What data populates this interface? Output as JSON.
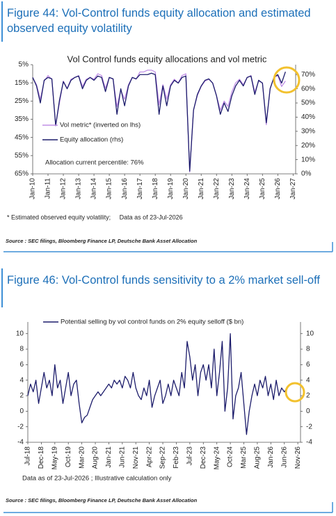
{
  "chart_data": [
    {
      "type": "line",
      "title": "Figure 44: Vol-Control funds equity allocation and estimated observed equity volatility",
      "subtitle": "Vol Control funds equity allocations and vol metric",
      "x": [
        "2010-01",
        "2010-04",
        "2010-07",
        "2010-10",
        "2011-01",
        "2011-04",
        "2011-07",
        "2011-10",
        "2012-01",
        "2012-04",
        "2012-07",
        "2012-10",
        "2013-01",
        "2013-04",
        "2013-07",
        "2013-10",
        "2014-01",
        "2014-04",
        "2014-07",
        "2014-10",
        "2015-01",
        "2015-04",
        "2015-07",
        "2015-10",
        "2016-01",
        "2016-04",
        "2016-07",
        "2016-10",
        "2017-01",
        "2017-04",
        "2017-07",
        "2017-10",
        "2018-01",
        "2018-04",
        "2018-07",
        "2018-10",
        "2019-01",
        "2019-04",
        "2019-07",
        "2019-10",
        "2020-01",
        "2020-04",
        "2020-07",
        "2020-10",
        "2021-01",
        "2021-04",
        "2021-07",
        "2021-10",
        "2022-01",
        "2022-04",
        "2022-07",
        "2022-10",
        "2023-01",
        "2023-04",
        "2023-07",
        "2023-10",
        "2024-01",
        "2024-04",
        "2024-07",
        "2024-10",
        "2025-01",
        "2025-04",
        "2025-07",
        "2025-10",
        "2026-01",
        "2026-04",
        "2026-07"
      ],
      "series": [
        {
          "name": "Vol metric* (inverted on lhs)",
          "color": "#c08fe6",
          "values": [
            12,
            16,
            24,
            14,
            11,
            13,
            38,
            26,
            14,
            18,
            13,
            12,
            11,
            17,
            13,
            12,
            13,
            10,
            11,
            18,
            12,
            13,
            28,
            19,
            24,
            16,
            12,
            13,
            9,
            9,
            8,
            8,
            9,
            27,
            16,
            24,
            16,
            13,
            15,
            11,
            10,
            64,
            30,
            22,
            17,
            14,
            13,
            15,
            22,
            30,
            25,
            28,
            20,
            15,
            13,
            16,
            12,
            11,
            20,
            14,
            15,
            38,
            18,
            12,
            11,
            17,
            14
          ]
        },
        {
          "name": "Equity allocation (rhs)",
          "color": "#1c1c6b",
          "axis": "y2",
          "values": [
            68,
            62,
            50,
            66,
            68,
            67,
            34,
            52,
            65,
            60,
            66,
            68,
            69,
            60,
            66,
            68,
            66,
            69,
            68,
            58,
            68,
            67,
            42,
            60,
            48,
            62,
            68,
            67,
            70,
            70,
            70,
            71,
            70,
            42,
            62,
            48,
            62,
            66,
            64,
            68,
            69,
            2,
            45,
            56,
            62,
            66,
            67,
            64,
            55,
            42,
            50,
            44,
            55,
            62,
            66,
            62,
            68,
            69,
            56,
            66,
            64,
            36,
            60,
            68,
            70,
            64,
            72
          ]
        }
      ],
      "ylim": [
        65,
        5
      ],
      "yticks": [
        {
          "value": 5,
          "label": "5%"
        },
        {
          "value": 15,
          "label": "15%"
        },
        {
          "value": 25,
          "label": "25%"
        },
        {
          "value": 35,
          "label": "35%"
        },
        {
          "value": 45,
          "label": "45%"
        },
        {
          "value": 55,
          "label": "55%"
        },
        {
          "value": 65,
          "label": "65%"
        }
      ],
      "y2lim": [
        0,
        77
      ],
      "y2ticks": [
        {
          "value": 0,
          "label": "0%"
        },
        {
          "value": 10,
          "label": "10%"
        },
        {
          "value": 20,
          "label": "20%"
        },
        {
          "value": 30,
          "label": "30%"
        },
        {
          "value": 40,
          "label": "40%"
        },
        {
          "value": 50,
          "label": "50%"
        },
        {
          "value": 60,
          "label": "60%"
        },
        {
          "value": 70,
          "label": "70%"
        }
      ],
      "xlim": [
        "2010-01",
        "2027-03"
      ],
      "xticks": [
        {
          "value": "2010-01",
          "label": "Jan-10"
        },
        {
          "value": "2011-01",
          "label": "Jan-11"
        },
        {
          "value": "2012-01",
          "label": "Jan-12"
        },
        {
          "value": "2013-01",
          "label": "Jan-13"
        },
        {
          "value": "2014-01",
          "label": "Jan-14"
        },
        {
          "value": "2015-01",
          "label": "Jan-15"
        },
        {
          "value": "2016-01",
          "label": "Jan-16"
        },
        {
          "value": "2017-01",
          "label": "Jan-17"
        },
        {
          "value": "2018-01",
          "label": "Jan-18"
        },
        {
          "value": "2019-01",
          "label": "Jan-19"
        },
        {
          "value": "2020-01",
          "label": "Jan-20"
        },
        {
          "value": "2021-01",
          "label": "Jan-21"
        },
        {
          "value": "2022-01",
          "label": "Jan-22"
        },
        {
          "value": "2023-01",
          "label": "Jan-23"
        },
        {
          "value": "2024-01",
          "label": "Jan-24"
        },
        {
          "value": "2025-01",
          "label": "Jan-25"
        },
        {
          "value": "2026-01",
          "label": "Jan-26"
        },
        {
          "value": "2027-01",
          "label": "Jan-27"
        }
      ],
      "legend": "lower-left",
      "annotations": [
        "Allocation current percentile: 76%"
      ],
      "footnote": "* Estimated observed equity volatility;     Data as of 23-Jul-2026",
      "source": "Source : SEC filings, Bloomberg Finance LP, Deutsche Bank Asset Allocation"
    },
    {
      "type": "line",
      "title": "Figure 46: Vol-Control funds sensitivity to a 2% market sell-off",
      "x": [
        "2018-07",
        "2018-08",
        "2018-09",
        "2018-10",
        "2018-11",
        "2018-12",
        "2019-01",
        "2019-02",
        "2019-03",
        "2019-04",
        "2019-05",
        "2019-06",
        "2019-07",
        "2019-08",
        "2019-09",
        "2019-10",
        "2019-11",
        "2019-12",
        "2020-01",
        "2020-02",
        "2020-03",
        "2020-04",
        "2020-05",
        "2020-06",
        "2020-07",
        "2020-08",
        "2020-09",
        "2020-10",
        "2020-11",
        "2020-12",
        "2021-01",
        "2021-02",
        "2021-03",
        "2021-04",
        "2021-05",
        "2021-06",
        "2021-07",
        "2021-08",
        "2021-09",
        "2021-10",
        "2021-11",
        "2021-12",
        "2022-01",
        "2022-02",
        "2022-03",
        "2022-04",
        "2022-05",
        "2022-06",
        "2022-07",
        "2022-08",
        "2022-09",
        "2022-10",
        "2022-11",
        "2022-12",
        "2023-01",
        "2023-02",
        "2023-03",
        "2023-04",
        "2023-05",
        "2023-06",
        "2023-07",
        "2023-08",
        "2023-09",
        "2023-10",
        "2023-11",
        "2023-12",
        "2024-01",
        "2024-02",
        "2024-03",
        "2024-04",
        "2024-05",
        "2024-06",
        "2024-07",
        "2024-08",
        "2024-09",
        "2024-10",
        "2024-11",
        "2024-12",
        "2025-01",
        "2025-02",
        "2025-03",
        "2025-04",
        "2025-05",
        "2025-06",
        "2025-07",
        "2025-08",
        "2025-09",
        "2025-10",
        "2025-11",
        "2025-12",
        "2026-01",
        "2026-02",
        "2026-03",
        "2026-04",
        "2026-05",
        "2026-06",
        "2026-07"
      ],
      "series": [
        {
          "name": "Potential selling by vol control funds on 2% equity selloff ($ bn)",
          "color": "#1c1c6b",
          "values": [
            2,
            3.5,
            2.5,
            4,
            1,
            3,
            5,
            3,
            4,
            2,
            6,
            3,
            4,
            1,
            3,
            5,
            2,
            3.5,
            4,
            1,
            -1.5,
            -0.8,
            -0.5,
            0.5,
            1.5,
            2,
            2.5,
            2,
            2.5,
            3,
            3.5,
            3,
            4,
            3.5,
            4,
            3,
            4.5,
            4,
            3,
            5,
            3,
            2,
            1.5,
            3,
            2,
            4,
            0.5,
            2,
            3,
            4,
            1,
            2,
            3.5,
            2,
            4,
            3,
            2,
            5,
            3,
            9,
            7,
            4,
            6,
            2,
            5,
            6,
            4,
            6,
            3,
            8,
            2,
            5,
            9,
            0,
            3,
            10,
            -1,
            2,
            3,
            5,
            1,
            -3,
            0,
            2,
            3.5,
            2,
            4,
            3,
            4.5,
            2,
            3.5,
            1.5,
            4,
            2,
            3,
            2.5,
            3
          ]
        }
      ],
      "ylim": [
        -4,
        11.5
      ],
      "yticks": [
        -4,
        -2,
        0,
        2,
        4,
        6,
        8,
        10
      ],
      "y2lim": [
        -4,
        11.5
      ],
      "y2ticks": [
        -4,
        -2,
        0,
        2,
        4,
        6,
        8,
        10
      ],
      "xlim": [
        "2018-07",
        "2026-12"
      ],
      "xticks": [
        {
          "value": "2018-07",
          "label": "Jul-18"
        },
        {
          "value": "2018-12",
          "label": "Dec-18"
        },
        {
          "value": "2019-05",
          "label": "May-19"
        },
        {
          "value": "2019-10",
          "label": "Oct-19"
        },
        {
          "value": "2020-03",
          "label": "Mar-20"
        },
        {
          "value": "2020-08",
          "label": "Aug-20"
        },
        {
          "value": "2021-01",
          "label": "Jan-21"
        },
        {
          "value": "2021-06",
          "label": "Jun-21"
        },
        {
          "value": "2021-11",
          "label": "Nov-21"
        },
        {
          "value": "2022-04",
          "label": "Apr-22"
        },
        {
          "value": "2022-09",
          "label": "Sep-22"
        },
        {
          "value": "2023-02",
          "label": "Feb-23"
        },
        {
          "value": "2023-07",
          "label": "Jul-23"
        },
        {
          "value": "2023-12",
          "label": "Dec-23"
        },
        {
          "value": "2024-05",
          "label": "May-24"
        },
        {
          "value": "2024-10",
          "label": "Oct-24"
        },
        {
          "value": "2025-03",
          "label": "Mar-25"
        },
        {
          "value": "2025-08",
          "label": "Aug-25"
        },
        {
          "value": "2026-01",
          "label": "Jan-26"
        },
        {
          "value": "2026-06",
          "label": "Jun-26"
        },
        {
          "value": "2026-11",
          "label": "Nov-26"
        }
      ],
      "legend": "upper-left",
      "annotations": [
        "Data as of 23-Jul-2026 ; Illustrative calculation only"
      ],
      "source": "Source : SEC filings, Bloomberg Finance LP, Deutsche Bank Asset Allocation"
    }
  ]
}
